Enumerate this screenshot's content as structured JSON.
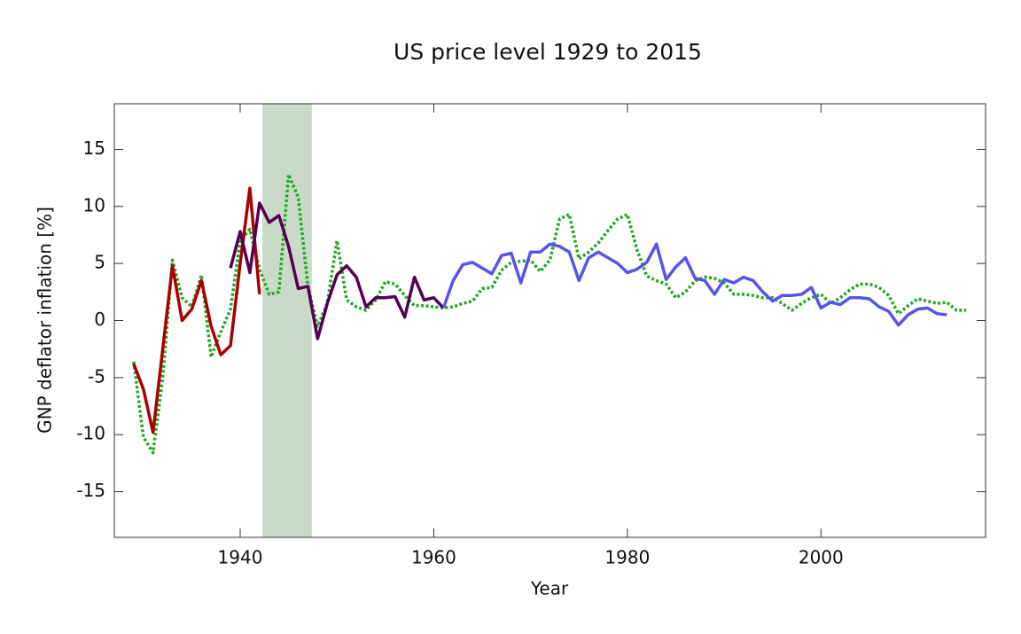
{
  "chart_data": {
    "type": "line",
    "title": "US price level 1929 to 2015",
    "x_label": "Year",
    "y_label": "GNP deflator inflation [%]",
    "xlim": [
      1927,
      2017
    ],
    "ylim": [
      -19,
      19
    ],
    "xticks": [
      1940,
      1960,
      1980,
      2000
    ],
    "yticks": [
      -15,
      -10,
      -5,
      0,
      5,
      10,
      15
    ],
    "shaded_regions": [
      {
        "x": [
          1942.3,
          1947.4
        ],
        "color": "#c9dac9"
      }
    ],
    "series": [
      {
        "color": "#22aa22",
        "dash": true,
        "x": [
          1929,
          1930,
          1931,
          1932,
          1933,
          1934,
          1935,
          1936,
          1937,
          1938,
          1939,
          1940,
          1941,
          1942,
          1943,
          1944,
          1945,
          1946,
          1947,
          1948,
          1949,
          1950,
          1951,
          1952,
          1953,
          1954,
          1955,
          1956,
          1957,
          1958,
          1959,
          1960,
          1961,
          1962,
          1963,
          1964,
          1965,
          1966,
          1967,
          1968,
          1969,
          1970,
          1971,
          1972,
          1973,
          1974,
          1975,
          1976,
          1977,
          1978,
          1979,
          1980,
          1981,
          1982,
          1983,
          1984,
          1985,
          1986,
          1987,
          1988,
          1989,
          1990,
          1991,
          1992,
          1993,
          1994,
          1995,
          1996,
          1997,
          1998,
          1999,
          2000,
          2001,
          2002,
          2003,
          2004,
          2005,
          2006,
          2007,
          2008,
          2009,
          2010,
          2011,
          2012,
          2013,
          2014,
          2015
        ],
        "values": [
          -3.6,
          -10.2,
          -11.6,
          -5,
          5.3,
          2,
          1.2,
          4,
          -3.2,
          -1,
          1,
          7,
          8,
          4.5,
          2.3,
          2.5,
          12.8,
          10.8,
          3,
          -0.5,
          1.5,
          7,
          1.8,
          1.2,
          0.9,
          1.8,
          3.4,
          3.2,
          2.2,
          1.3,
          1.3,
          1.2,
          1.1,
          1.2,
          1.5,
          1.7,
          2.8,
          2.9,
          4.4,
          5.1,
          5.2,
          5.3,
          4.3,
          5.3,
          8.9,
          9.3,
          5.4,
          6,
          6.8,
          7.9,
          8.9,
          9.3,
          6.2,
          3.9,
          3.5,
          3.2,
          2,
          2.5,
          3.5,
          3.8,
          3.7,
          3.3,
          2.3,
          2.3,
          2.2,
          2,
          2,
          1.5,
          0.9,
          1.5,
          2,
          2.3,
          1.5,
          2,
          2.7,
          3.2,
          3.2,
          2.9,
          2.2,
          0.6,
          1.3,
          1.9,
          1.7,
          1.5,
          1.6,
          0.9,
          0.9
        ]
      },
      {
        "color": "#aa0000",
        "x": [
          1929,
          1930,
          1931,
          1932,
          1933,
          1934,
          1935,
          1936,
          1937,
          1938,
          1939,
          1940,
          1941,
          1942
        ],
        "values": [
          -3.8,
          -6,
          -9.8,
          -2.5,
          4.8,
          0,
          1,
          3.5,
          -0.5,
          -3,
          -2.2,
          5,
          11.6,
          2.3
        ]
      },
      {
        "color": "#550055",
        "x": [
          1939,
          1940,
          1941,
          1942,
          1943,
          1944,
          1945,
          1946,
          1947,
          1948,
          1949,
          1950,
          1951,
          1952,
          1953,
          1954,
          1955,
          1956,
          1957,
          1958,
          1959,
          1960,
          1961
        ],
        "values": [
          4.6,
          7.8,
          4.2,
          10.3,
          8.6,
          9.2,
          6.5,
          2.8,
          3,
          -1.6,
          1.5,
          4,
          4.8,
          3.8,
          1.2,
          2,
          2,
          2.1,
          0.3,
          3.8,
          1.8,
          2,
          1.1
        ]
      },
      {
        "color": "#5555ee",
        "x": [
          1961,
          1962,
          1963,
          1964,
          1965,
          1966,
          1967,
          1968,
          1969,
          1970,
          1971,
          1972,
          1973,
          1974,
          1975,
          1976,
          1977,
          1978,
          1979,
          1980,
          1981,
          1982,
          1983,
          1984,
          1985,
          1986,
          1987,
          1988,
          1989,
          1990,
          1991,
          1992,
          1993,
          1994,
          1995,
          1996,
          1997,
          1998,
          1999,
          2000,
          2001,
          2002,
          2003,
          2004,
          2005,
          2006,
          2007,
          2008,
          2009,
          2010,
          2011,
          2012,
          2013
        ],
        "values": [
          1.1,
          3.5,
          4.9,
          5.1,
          4.6,
          4.1,
          5.7,
          5.9,
          3.3,
          6,
          6,
          6.7,
          6.5,
          6,
          3.5,
          5.5,
          6,
          5.5,
          5,
          4.2,
          4.5,
          5.1,
          6.7,
          3.6,
          4.7,
          5.5,
          3.7,
          3.5,
          2.3,
          3.6,
          3.3,
          3.8,
          3.5,
          2.5,
          1.7,
          2.2,
          2.2,
          2.3,
          2.9,
          1.1,
          1.6,
          1.4,
          2,
          2,
          1.9,
          1.2,
          0.8,
          -0.4,
          0.5,
          1,
          1.1,
          0.6,
          0.5
        ]
      }
    ]
  }
}
